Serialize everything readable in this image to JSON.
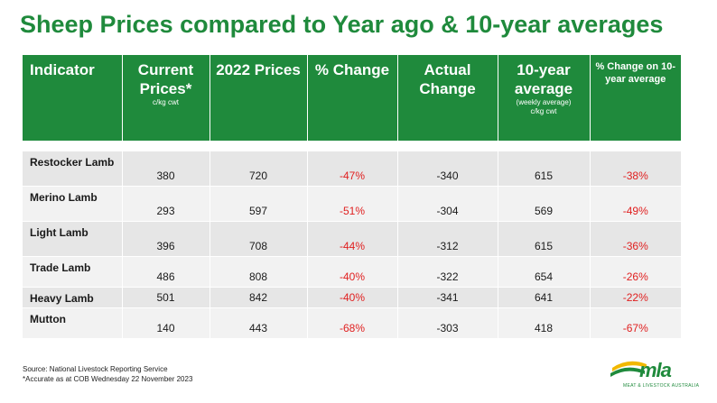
{
  "title": "Sheep Prices compared to Year ago & 10-year averages",
  "headers": {
    "indicator": "Indicator",
    "current": "Current Prices*",
    "current_sub": "c/kg cwt",
    "prices2022": "2022 Prices",
    "pct_change": "% Change",
    "actual_change": "Actual Change",
    "ten_year": "10-year average",
    "ten_year_sub1": "(weekly average)",
    "ten_year_sub2": "c/kg cwt",
    "pct_change_10": "% Change on 10-year average"
  },
  "rows": [
    {
      "indicator": "Restocker Lamb",
      "current": "380",
      "prices2022": "720",
      "pct_change": "-47%",
      "actual_change": "-340",
      "ten_year": "615",
      "pct_change_10": "-38%"
    },
    {
      "indicator": "Merino Lamb",
      "current": "293",
      "prices2022": "597",
      "pct_change": "-51%",
      "actual_change": "-304",
      "ten_year": "569",
      "pct_change_10": "-49%"
    },
    {
      "indicator": "Light Lamb",
      "current": "396",
      "prices2022": "708",
      "pct_change": "-44%",
      "actual_change": "-312",
      "ten_year": "615",
      "pct_change_10": "-36%"
    },
    {
      "indicator": "Trade Lamb",
      "current": "486",
      "prices2022": "808",
      "pct_change": "-40%",
      "actual_change": "-322",
      "ten_year": "654",
      "pct_change_10": "-26%"
    },
    {
      "indicator": "Heavy Lamb",
      "current": "501",
      "prices2022": "842",
      "pct_change": "-40%",
      "actual_change": "-341",
      "ten_year": "641",
      "pct_change_10": "-22%"
    },
    {
      "indicator": "Mutton",
      "current": "140",
      "prices2022": "443",
      "pct_change": "-68%",
      "actual_change": "-303",
      "ten_year": "418",
      "pct_change_10": "-67%"
    }
  ],
  "footer": {
    "source": "Source: National Livestock Reporting Service",
    "note": "*Accurate as at COB Wednesday 22 November 2023"
  },
  "logo": {
    "text": "mla",
    "subtitle": "MEAT & LIVESTOCK AUSTRALIA",
    "colors": {
      "green": "#1f8a3c",
      "yellow": "#f2b800"
    }
  },
  "colors": {
    "brand_green": "#1f8a3c",
    "negative_red": "#e02020",
    "row_shade": "#e6e6e6",
    "row_plain": "#f2f2f2"
  }
}
